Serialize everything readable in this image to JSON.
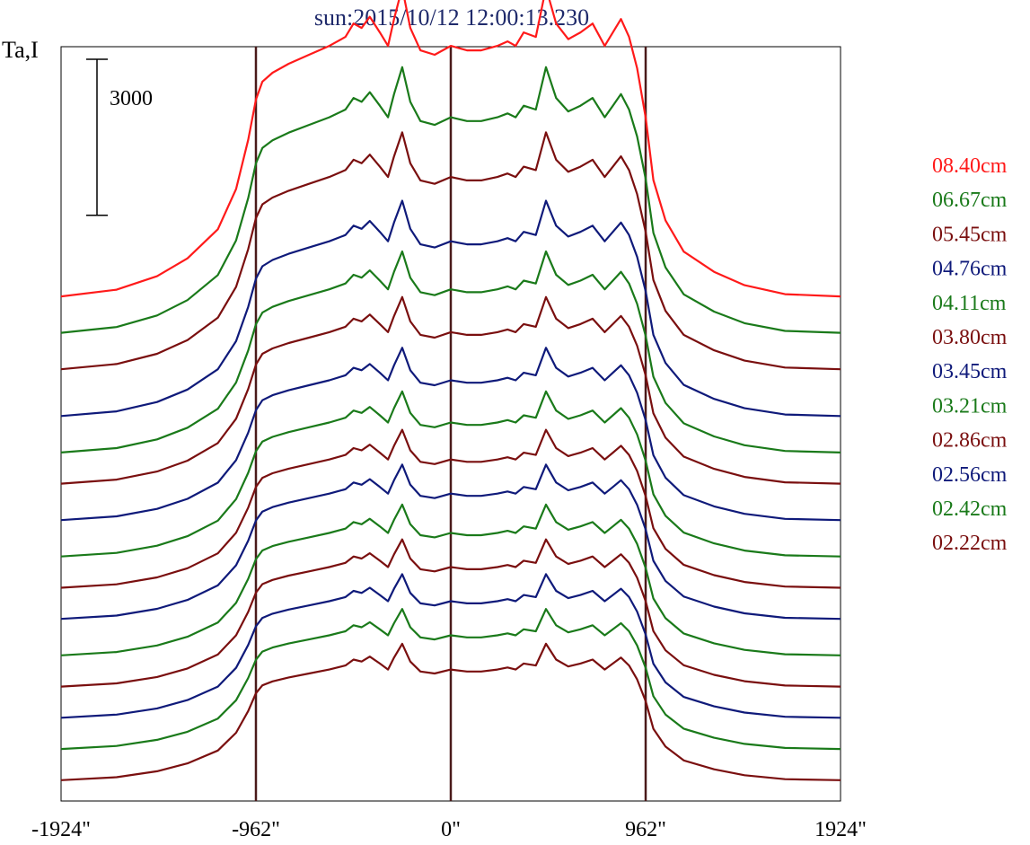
{
  "chart_data": {
    "type": "line",
    "title": "sun:2015/10/12 12:00:13.230",
    "ylabel": "Ta,I",
    "xlabel": "",
    "scale_bar_label": "3000",
    "scale_bar_value": 3000,
    "x_ticks": [
      {
        "value": -1924,
        "label": "-1924\""
      },
      {
        "value": -962,
        "label": "-962\""
      },
      {
        "value": 0,
        "label": "0\""
      },
      {
        "value": 962,
        "label": "962\""
      },
      {
        "value": 1924,
        "label": "1924\""
      }
    ],
    "xlim": [
      -1924,
      1924
    ],
    "vertical_lines": [
      -962,
      0,
      962
    ],
    "vertical_line_color": "#4a1a1a",
    "series": [
      {
        "name": "08.40cm",
        "color": "#ff1a1a",
        "baseline": 6400
      },
      {
        "name": "06.67cm",
        "color": "#1a7a1a",
        "baseline": 5700
      },
      {
        "name": "05.45cm",
        "color": "#7a0f0f",
        "baseline": 5000
      },
      {
        "name": "04.76cm",
        "color": "#0f1a7a",
        "baseline": 4100
      },
      {
        "name": "04.11cm",
        "color": "#1a7a1a",
        "baseline": 3400
      },
      {
        "name": "03.80cm",
        "color": "#7a0f0f",
        "baseline": 2800
      },
      {
        "name": "03.45cm",
        "color": "#0f1a7a",
        "baseline": 2100
      },
      {
        "name": "03.21cm",
        "color": "#1a7a1a",
        "baseline": 1400
      },
      {
        "name": "02.86cm",
        "color": "#7a0f0f",
        "baseline": 800
      },
      {
        "name": "02.56cm",
        "color": "#0f1a7a",
        "baseline": 200
      },
      {
        "name": "02.42cm",
        "color": "#1a7a1a",
        "baseline": -500
      },
      {
        "name": "02.22cm",
        "color": "#7a0f0f",
        "baseline": -1100
      },
      {
        "name": "",
        "color": "#0f1a7a",
        "baseline": -1700
      },
      {
        "name": "",
        "color": "#1a7a1a",
        "baseline": -2300
      },
      {
        "name": "",
        "color": "#7a0f0f",
        "baseline": -2900
      }
    ],
    "profile_x": [
      -1924,
      -1650,
      -1450,
      -1300,
      -1150,
      -1060,
      -1000,
      -962,
      -930,
      -880,
      -800,
      -700,
      -600,
      -520,
      -480,
      -440,
      -400,
      -350,
      -310,
      -280,
      -240,
      -200,
      -150,
      -80,
      0,
      80,
      150,
      230,
      280,
      320,
      360,
      420,
      470,
      520,
      580,
      640,
      700,
      760,
      800,
      840,
      880,
      920,
      962,
      1000,
      1060,
      1150,
      1300,
      1450,
      1650,
      1924
    ],
    "profile_shape": [
      0.0,
      0.03,
      0.09,
      0.17,
      0.3,
      0.48,
      0.7,
      0.88,
      0.96,
      1.0,
      1.04,
      1.08,
      1.12,
      1.16,
      1.22,
      1.2,
      1.25,
      1.18,
      1.12,
      1.24,
      1.38,
      1.2,
      1.1,
      1.08,
      1.12,
      1.1,
      1.1,
      1.12,
      1.14,
      1.12,
      1.18,
      1.16,
      1.38,
      1.22,
      1.15,
      1.18,
      1.22,
      1.12,
      1.18,
      1.24,
      1.16,
      1.02,
      0.8,
      0.52,
      0.34,
      0.2,
      0.11,
      0.05,
      0.01,
      0.0
    ],
    "amplitudes": [
      4300,
      3700,
      3300,
      3000,
      2800,
      2600,
      2400,
      2300,
      2200,
      2150,
      2100,
      2050,
      2000,
      1950,
      1900
    ],
    "ylim": [
      -3300,
      11200
    ]
  }
}
